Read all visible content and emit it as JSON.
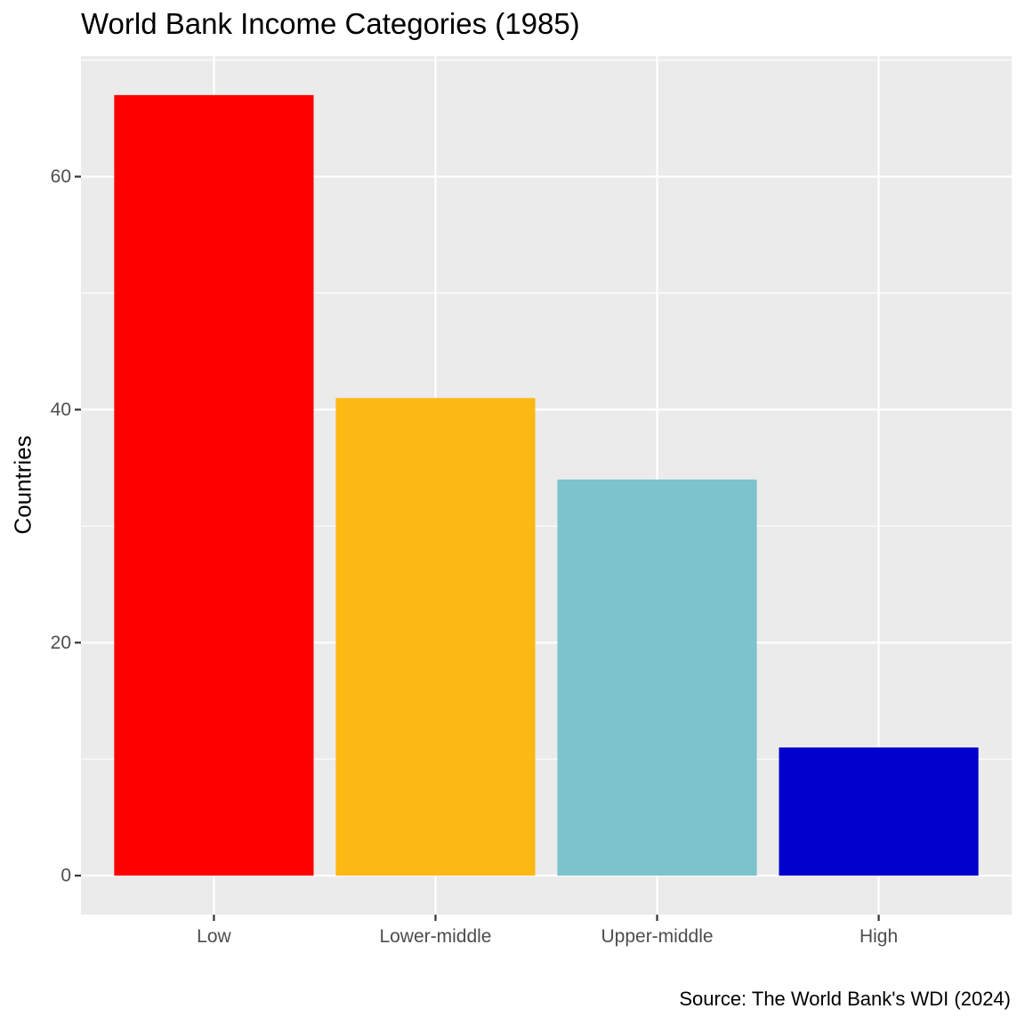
{
  "chart_data": {
    "type": "bar",
    "title": "World Bank Income Categories (1985)",
    "xlabel": "",
    "ylabel": "Countries",
    "caption": "Source: The World Bank's WDI (2024)",
    "categories": [
      "Low",
      "Lower-middle",
      "Upper-middle",
      "High"
    ],
    "values": [
      67,
      41,
      34,
      11
    ],
    "colors": [
      "#ff0000",
      "#fdb913",
      "#7cc3cc",
      "#0000cd"
    ],
    "ylim": [
      -3.35,
      70.35
    ],
    "yticks": [
      0,
      20,
      40,
      60
    ],
    "ytick_labels": [
      "0",
      "20",
      "40",
      "60"
    ],
    "y_minor_ticks": [
      10,
      30,
      50,
      70
    ],
    "panel_background": "#ebebeb",
    "grid": true,
    "legend": "none"
  }
}
